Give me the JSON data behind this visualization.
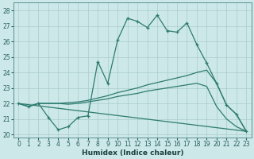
{
  "xlabel": "Humidex (Indice chaleur)",
  "xlim": [
    -0.5,
    23.5
  ],
  "ylim": [
    19.8,
    28.5
  ],
  "xticks": [
    0,
    1,
    2,
    3,
    4,
    5,
    6,
    7,
    8,
    9,
    10,
    11,
    12,
    13,
    14,
    15,
    16,
    17,
    18,
    19,
    20,
    21,
    22,
    23
  ],
  "yticks": [
    20,
    21,
    22,
    23,
    24,
    25,
    26,
    27,
    28
  ],
  "background_color": "#cce8e8",
  "grid_color": "#aacccc",
  "line_color": "#2e7b6e",
  "line1_y": [
    22.0,
    21.8,
    22.0,
    21.1,
    20.3,
    20.5,
    21.1,
    21.2,
    24.7,
    23.3,
    26.1,
    27.5,
    27.3,
    26.9,
    27.7,
    26.7,
    26.6,
    27.2,
    25.8,
    24.6,
    23.3,
    21.9,
    21.3,
    20.2
  ],
  "line2_y": [
    22.0,
    21.8,
    22.0,
    22.0,
    22.0,
    22.05,
    22.1,
    22.2,
    22.35,
    22.5,
    22.7,
    22.85,
    23.0,
    23.2,
    23.35,
    23.5,
    23.65,
    23.8,
    24.0,
    24.15,
    23.3,
    21.9,
    21.3,
    20.2
  ],
  "line3_y": [
    22.0,
    21.8,
    22.0,
    22.0,
    22.0,
    21.95,
    22.0,
    22.1,
    22.2,
    22.3,
    22.45,
    22.55,
    22.65,
    22.8,
    22.9,
    23.0,
    23.1,
    23.2,
    23.3,
    23.1,
    21.8,
    21.0,
    20.5,
    20.2
  ],
  "line4_y": [
    22.0,
    20.2
  ],
  "line4_x": [
    0,
    23
  ]
}
